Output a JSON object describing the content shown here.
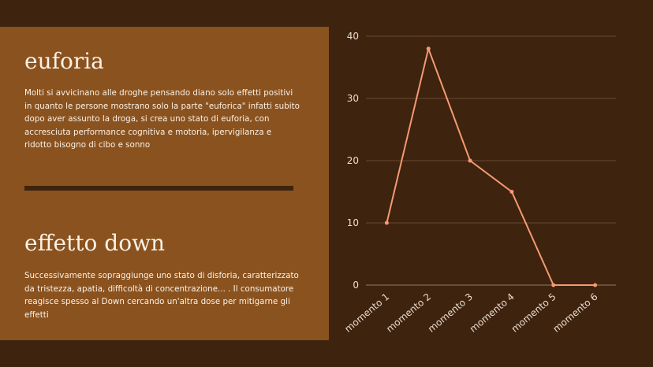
{
  "left_panel": {
    "title1": "euforia",
    "text1": "Molti si avvicinano alle droghe pensando diano solo effetti positivi in quanto le persone mostrano solo la parte \"euforica\" infatti subito dopo aver assunto la droga, si crea uno stato di euforia, con accresciuta performance cognitiva e motoria, ipervigilanza e ridotto bisogno di cibo e sonno",
    "title2": "effetto down",
    "text2": "Successivamente sopraggiunge uno stato di disforia, caratterizzato da tristezza, apatia, difficoltà di concentrazione... . Il consumatore reagisce spesso al Down cercando un'altra dose per mitigarne gli effetti"
  },
  "colors": {
    "background": "#3e230f",
    "panel": "#8a521e",
    "line": "#f59a72",
    "text": "#fbf1e6"
  },
  "chart_data": {
    "type": "line",
    "categories": [
      "momento 1",
      "momento 2",
      "momento 3",
      "momento 4",
      "momento 5",
      "momento 6"
    ],
    "series": [
      {
        "values": [
          10,
          38,
          20,
          15,
          0,
          0
        ]
      }
    ],
    "yticks": [
      "0",
      "10",
      "20",
      "30",
      "40"
    ],
    "ylim": [
      0,
      40
    ],
    "grid": true,
    "legend": "none"
  }
}
